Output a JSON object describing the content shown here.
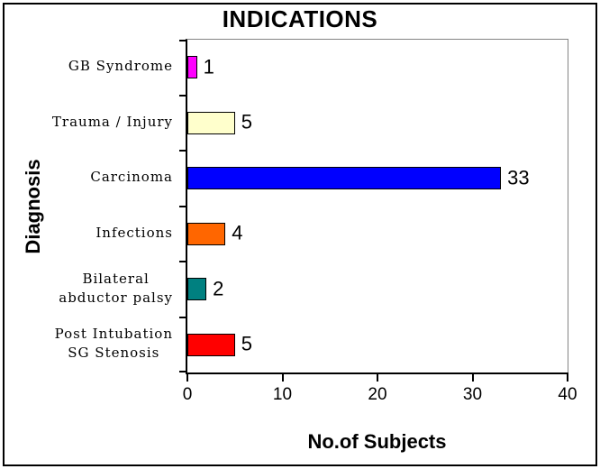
{
  "chart_data": {
    "type": "bar",
    "orientation": "horizontal",
    "title": "INDICATIONS",
    "xlabel": "No.of Subjects",
    "ylabel": "Diagnosis",
    "xlim": [
      0,
      40
    ],
    "xticks": [
      0,
      10,
      20,
      30,
      40
    ],
    "grid": false,
    "legend": false,
    "categories": [
      "GB Syndrome",
      "Trauma / Injury",
      "Carcinoma",
      "Infections",
      "Bilateral\nabductor palsy",
      "Post Intubation\nSG Stenosis"
    ],
    "values": [
      1,
      5,
      33,
      4,
      2,
      5
    ],
    "value_labels": [
      "1",
      "5",
      "33",
      "4",
      "2",
      "5"
    ],
    "bar_colors": [
      "#FF00FF",
      "#FFFFCC",
      "#0000FF",
      "#FF6600",
      "#008080",
      "#FF0000"
    ],
    "bar_border_color": "#000000",
    "plot_border_color": "#848484",
    "axis_color": "#000000",
    "background_color": "#FFFFFF"
  }
}
